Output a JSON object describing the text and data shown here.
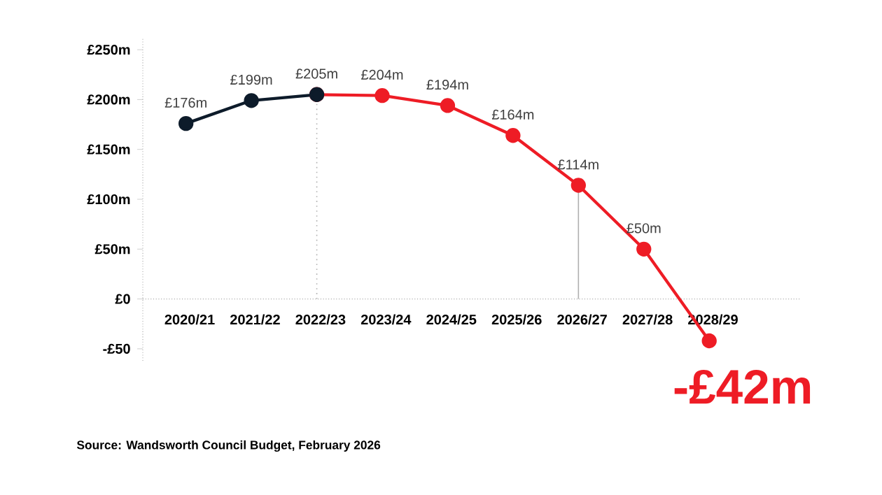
{
  "chart_data": {
    "type": "line",
    "categories": [
      "2020/21",
      "2021/22",
      "2022/23",
      "2023/24",
      "2024/25",
      "2025/26",
      "2026/27",
      "2027/28",
      "2028/29"
    ],
    "series": [
      {
        "color": "#ee1c25",
        "values": [
          null,
          null,
          205,
          204,
          194,
          164,
          114,
          50,
          -42
        ],
        "value_labels": [
          null,
          null,
          null,
          "£204m",
          "£194m",
          "£164m",
          "£114m",
          "£50m",
          null
        ]
      },
      {
        "color": "#0d1b2a",
        "values": [
          176,
          199,
          205,
          null,
          null,
          null,
          null,
          null,
          null
        ],
        "value_labels": [
          "£176m",
          "£199m",
          "£205m",
          null,
          null,
          null,
          null,
          null,
          null
        ]
      }
    ],
    "ylim": [
      -62,
      262
    ],
    "yticks": [
      {
        "value": 250,
        "label": "£250m"
      },
      {
        "value": 200,
        "label": "£200m"
      },
      {
        "value": 150,
        "label": "£150m"
      },
      {
        "value": 100,
        "label": "£100m"
      },
      {
        "value": 50,
        "label": "£50m"
      },
      {
        "value": 0,
        "label": "£0"
      },
      {
        "value": -50,
        "label": "-£50"
      }
    ],
    "marker": "circle",
    "line_style": "solid",
    "ref_lines": [
      {
        "axis": "x",
        "value": "2022/23",
        "color": "#b0b0b0",
        "line_style": "dotted"
      },
      {
        "axis": "x",
        "value": "2026/27",
        "color": "#b0b0b0",
        "line_style": "solid"
      }
    ],
    "annotations": [
      {
        "text": "-£42m",
        "x": "2028/29",
        "y": -42
      },
      "Source: Wandsworth Council Budget, February 2026"
    ]
  }
}
